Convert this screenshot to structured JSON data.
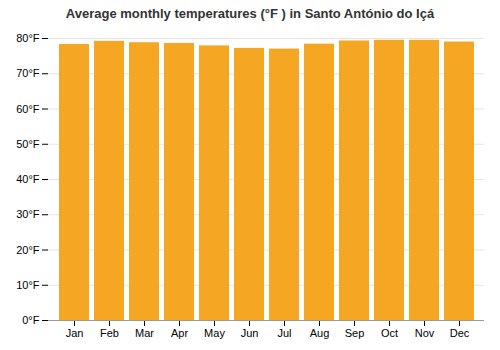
{
  "chart_data": {
    "type": "bar",
    "title": "Average monthly temperatures (°F ) in Santo António do Içá",
    "categories": [
      "Jan",
      "Feb",
      "Mar",
      "Apr",
      "May",
      "Jun",
      "Jul",
      "Aug",
      "Sep",
      "Oct",
      "Nov",
      "Dec"
    ],
    "values": [
      78.3,
      79.2,
      78.8,
      78.6,
      77.9,
      77.2,
      77.0,
      78.4,
      79.3,
      79.5,
      79.5,
      79.0
    ],
    "color": "#F5A623",
    "ylim": [
      0,
      80
    ],
    "yticks": [
      {
        "value": 0,
        "label": "0°F"
      },
      {
        "value": 10,
        "label": "10°F"
      },
      {
        "value": 20,
        "label": "20°F"
      },
      {
        "value": 30,
        "label": "30°F"
      },
      {
        "value": 40,
        "label": "40°F"
      },
      {
        "value": 50,
        "label": "50°F"
      },
      {
        "value": 60,
        "label": "60°F"
      },
      {
        "value": 70,
        "label": "70°F"
      },
      {
        "value": 80,
        "label": "80°F"
      }
    ],
    "grid": true
  }
}
